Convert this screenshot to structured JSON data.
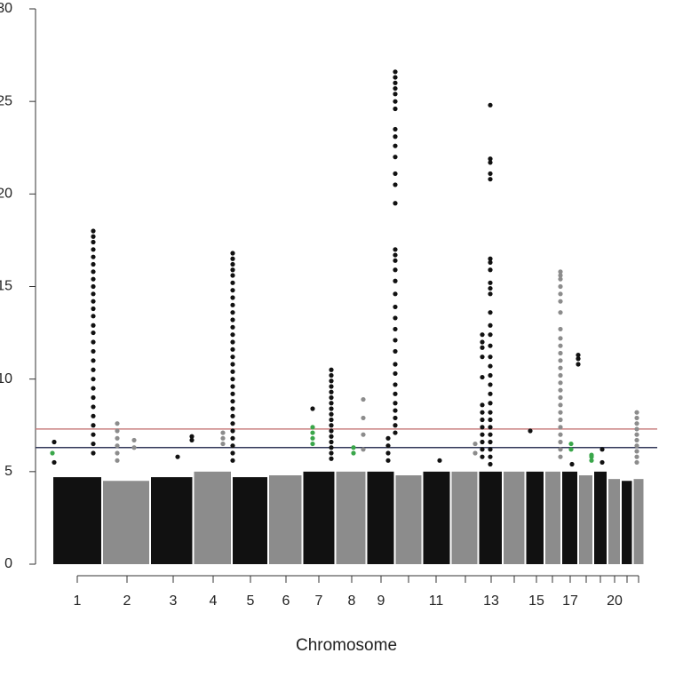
{
  "chart_data": {
    "type": "manhattan",
    "xlabel": "Chromosome",
    "xlim": [
      0,
      700
    ],
    "ylim": [
      0,
      30
    ],
    "yticks": [
      0,
      5,
      10,
      15,
      20,
      25,
      30
    ],
    "categories": [
      "1",
      "2",
      "3",
      "4",
      "5",
      "6",
      "7",
      "8",
      "9",
      null,
      "11",
      null,
      "13",
      null,
      "15",
      null,
      "17",
      null,
      null,
      "20",
      null,
      null
    ],
    "x": [
      47,
      103,
      155,
      200,
      242,
      282,
      319,
      356,
      389,
      420,
      451,
      484,
      513,
      539,
      564,
      582,
      602,
      620,
      636,
      652,
      666,
      679
    ],
    "bulk": [
      4.7,
      4.5,
      4.7,
      5.0,
      4.7,
      4.8,
      5.0,
      5.0,
      5.0,
      4.8,
      5.0,
      5.0,
      5.0,
      5.0,
      5.0,
      5.0,
      5.0,
      4.8,
      5.0,
      4.6,
      4.5,
      4.6
    ],
    "colors": [
      "#111111",
      "#8c8c8c"
    ],
    "thresholds": [
      {
        "value": 7.3,
        "color": "#c98080"
      },
      {
        "value": 6.3,
        "color": "#33395a"
      }
    ],
    "peaks": [
      {
        "x": 65,
        "color": "#111111",
        "values": [
          18,
          17.7,
          17.4,
          17,
          16.6,
          16.2,
          15.8,
          15.4,
          15,
          14.6,
          14.2,
          13.8,
          13.4,
          12.9,
          12.5,
          12,
          11.5,
          11,
          10.5,
          10,
          9.5,
          9,
          8.5,
          8,
          7.5,
          7,
          6.5,
          6
        ]
      },
      {
        "x": 19,
        "color": "#3aa64a",
        "values": [
          6.0
        ]
      },
      {
        "x": 21,
        "color": "#111111",
        "values": [
          6.6,
          5.5
        ]
      },
      {
        "x": 92,
        "color": "#8c8c8c",
        "values": [
          7.6,
          7.2,
          6.8,
          6.4,
          6.0,
          5.6
        ]
      },
      {
        "x": 111,
        "color": "#8c8c8c",
        "values": [
          6.7,
          6.3
        ]
      },
      {
        "x": 176,
        "color": "#111111",
        "values": [
          6.9,
          6.7
        ]
      },
      {
        "x": 160,
        "color": "#111111",
        "values": [
          5.8
        ]
      },
      {
        "x": 211,
        "color": "#8c8c8c",
        "values": [
          7.1,
          6.8,
          6.5
        ]
      },
      {
        "x": 222,
        "color": "#111111",
        "values": [
          16.8,
          16.5,
          16.2,
          15.9,
          15.6,
          15.2,
          14.8,
          14.4,
          14,
          13.6,
          13.2,
          12.8,
          12.4,
          12,
          11.6,
          11.2,
          10.8,
          10.4,
          10,
          9.6,
          9.2,
          8.8,
          8.4,
          8,
          7.6,
          7.2,
          6.8,
          6.4,
          6,
          5.6
        ]
      },
      {
        "x": 312,
        "color": "#111111",
        "values": [
          8.4
        ]
      },
      {
        "x": 312,
        "color": "#3aa64a",
        "values": [
          7.4,
          7.1,
          6.8,
          6.5
        ]
      },
      {
        "x": 333,
        "color": "#111111",
        "values": [
          10.5,
          10.2,
          9.9,
          9.6,
          9.3,
          9.0,
          8.7,
          8.4,
          8.1,
          7.8,
          7.5,
          7.2,
          6.9,
          6.6,
          6.3,
          6.0,
          5.7
        ]
      },
      {
        "x": 358,
        "color": "#3aa64a",
        "values": [
          6.3,
          6.0
        ]
      },
      {
        "x": 369,
        "color": "#8c8c8c",
        "values": [
          8.9,
          7.9,
          7.0,
          6.2
        ]
      },
      {
        "x": 405,
        "color": "#111111",
        "values": [
          26.6,
          26.3,
          26,
          25.7,
          25.4,
          25,
          24.6,
          23.5,
          23.1,
          22.6,
          22,
          21.1,
          20.5,
          19.5,
          17,
          16.7,
          16.4,
          15.9,
          15.3,
          14.6,
          13.9,
          13.3,
          12.7,
          12.1,
          11.5,
          10.8,
          10.3,
          9.7,
          9.2,
          8.7,
          8.3,
          7.9,
          7.5,
          7.1
        ]
      },
      {
        "x": 397,
        "color": "#111111",
        "values": [
          6.8,
          6.4,
          6.0,
          5.6
        ]
      },
      {
        "x": 455,
        "color": "#111111",
        "values": [
          5.6
        ]
      },
      {
        "x": 495,
        "color": "#8c8c8c",
        "values": [
          6.5,
          6.0
        ]
      },
      {
        "x": 512,
        "color": "#111111",
        "values": [
          24.8,
          21.9,
          21.7,
          21.1,
          20.8,
          16.5,
          16.3,
          15.9,
          15.2,
          14.9,
          14.6,
          13.6,
          12.9,
          12.4,
          11.8,
          11.2,
          10.7,
          10.2,
          9.7,
          9.2,
          8.7,
          8.2,
          7.8,
          7.4,
          7.0,
          6.6,
          6.2,
          5.8,
          5.4
        ]
      },
      {
        "x": 503,
        "color": "#111111",
        "values": [
          12.4,
          12,
          11.7,
          11.2,
          10.1,
          8.6,
          8.2,
          7.8,
          7.4,
          7.0,
          6.6,
          6.2,
          5.8
        ]
      },
      {
        "x": 557,
        "color": "#111111",
        "values": [
          7.2
        ]
      },
      {
        "x": 591,
        "color": "#8c8c8c",
        "values": [
          15.8,
          15.6,
          15.4,
          15,
          14.6,
          14.2,
          13.6,
          12.7,
          12.2,
          11.8,
          11.4,
          11,
          10.6,
          10.2,
          9.8,
          9.4,
          9.0,
          8.6,
          8.2,
          7.8,
          7.4,
          7.0,
          6.6,
          6.2,
          5.8
        ]
      },
      {
        "x": 611,
        "color": "#111111",
        "values": [
          11.3,
          11.1,
          10.8
        ]
      },
      {
        "x": 603,
        "color": "#3aa64a",
        "values": [
          6.5,
          6.2
        ]
      },
      {
        "x": 604,
        "color": "#111111",
        "values": [
          5.4
        ]
      },
      {
        "x": 626,
        "color": "#3aa64a",
        "values": [
          5.9,
          5.8,
          5.6
        ]
      },
      {
        "x": 638,
        "color": "#111111",
        "values": [
          6.2,
          5.5
        ]
      },
      {
        "x": 677,
        "color": "#8c8c8c",
        "values": [
          8.2,
          7.9,
          7.6,
          7.3,
          7,
          6.7,
          6.4,
          6.1,
          5.8,
          5.5
        ]
      }
    ]
  }
}
